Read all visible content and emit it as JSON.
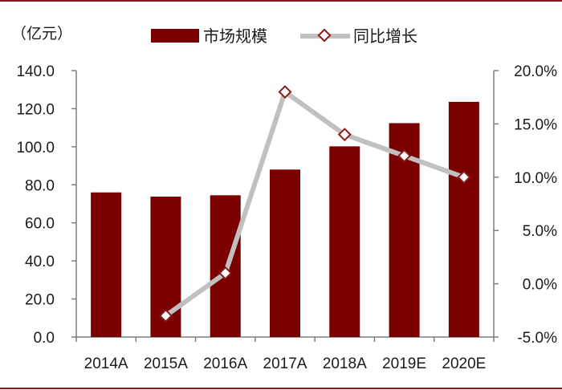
{
  "chart_data": {
    "type": "bar+line",
    "unit_label": "（亿元）",
    "categories": [
      "2014A",
      "2015A",
      "2016A",
      "2017A",
      "2018A",
      "2019E",
      "2020E"
    ],
    "series": [
      {
        "name": "市场规模",
        "type": "bar",
        "axis": "left",
        "values": [
          76.0,
          73.8,
          74.5,
          88.0,
          100.2,
          112.4,
          123.6
        ]
      },
      {
        "name": "同比增长",
        "type": "line",
        "axis": "right",
        "values": [
          null,
          -3.0,
          1.0,
          18.0,
          14.0,
          12.0,
          10.0
        ]
      }
    ],
    "left_axis": {
      "min": 0,
      "max": 140,
      "step": 20,
      "ticks": [
        "0.0",
        "20.0",
        "40.0",
        "60.0",
        "80.0",
        "100.0",
        "120.0",
        "140.0"
      ]
    },
    "right_axis": {
      "min": -5,
      "max": 20,
      "step": 5,
      "ticks": [
        "-5.0%",
        "0.0%",
        "5.0%",
        "10.0%",
        "15.0%",
        "20.0%"
      ]
    },
    "grid": false,
    "legend_position": "top",
    "colors": {
      "bar": "#7a0000",
      "line": "#c0c0c0",
      "marker_stroke": "#8b1a1a",
      "axis": "#7f7f7f",
      "border": "#8b1a1a"
    }
  }
}
